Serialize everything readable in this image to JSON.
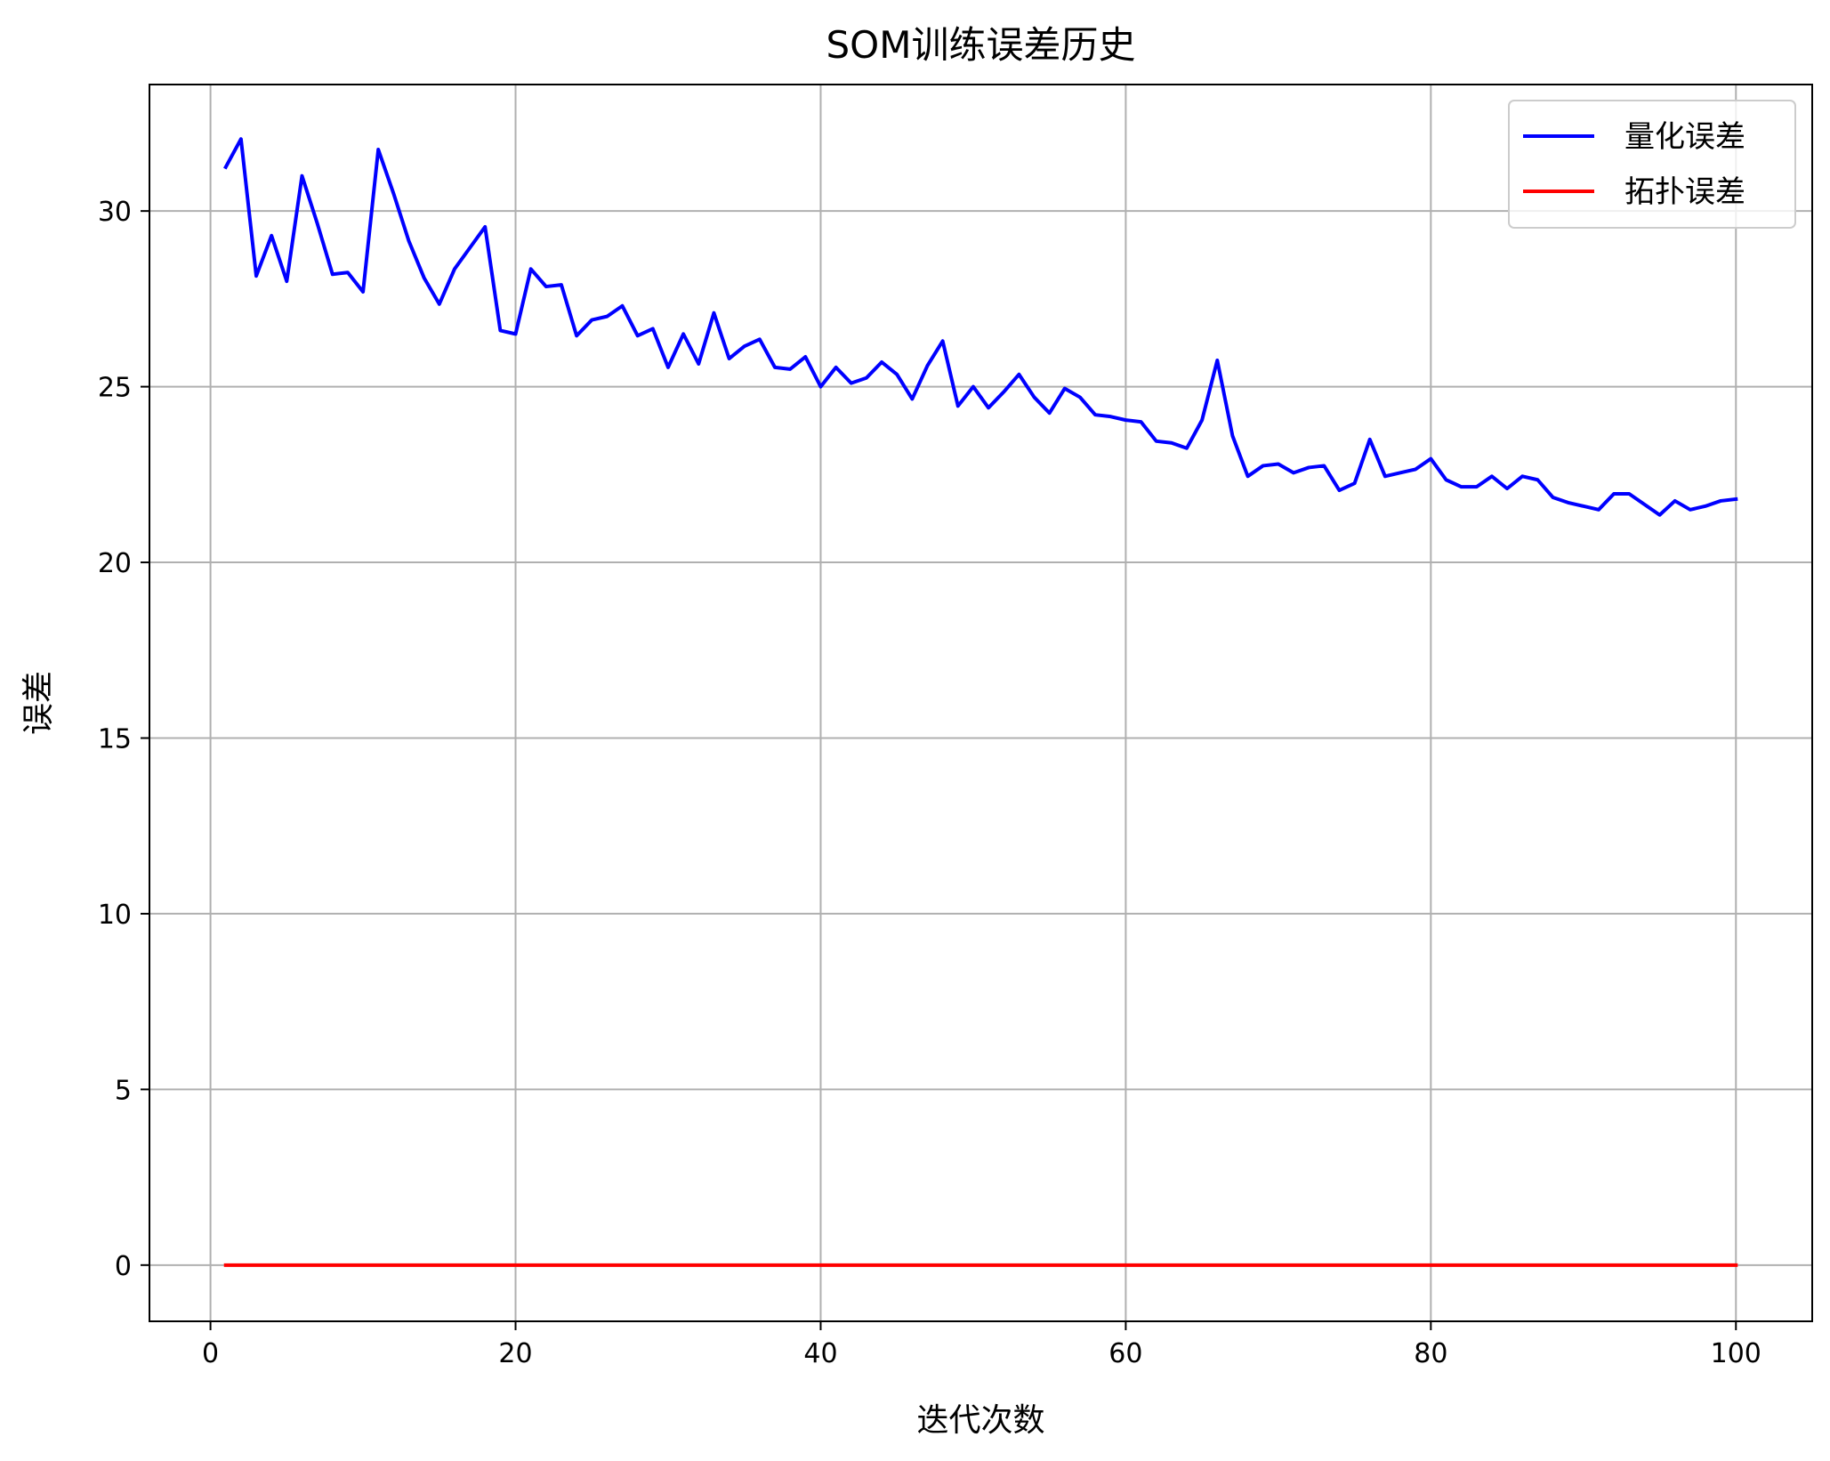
{
  "chart_data": {
    "type": "line",
    "title": "SOM训练误差历史",
    "xlabel": "迭代次数",
    "ylabel": "误差",
    "xlim": [
      -4,
      105
    ],
    "ylim": [
      -1.6,
      33.6
    ],
    "xticks": [
      0,
      20,
      40,
      60,
      80,
      100
    ],
    "yticks": [
      0,
      5,
      10,
      15,
      20,
      25,
      30
    ],
    "grid": true,
    "legend_position": "top-right",
    "x": [
      1,
      2,
      3,
      4,
      5,
      6,
      7,
      8,
      9,
      10,
      11,
      12,
      13,
      14,
      15,
      16,
      17,
      18,
      19,
      20,
      21,
      22,
      23,
      24,
      25,
      26,
      27,
      28,
      29,
      30,
      31,
      32,
      33,
      34,
      35,
      36,
      37,
      38,
      39,
      40,
      41,
      42,
      43,
      44,
      45,
      46,
      47,
      48,
      49,
      50,
      51,
      52,
      53,
      54,
      55,
      56,
      57,
      58,
      59,
      60,
      61,
      62,
      63,
      64,
      65,
      66,
      67,
      68,
      69,
      70,
      71,
      72,
      73,
      74,
      75,
      76,
      77,
      78,
      79,
      80,
      81,
      82,
      83,
      84,
      85,
      86,
      87,
      88,
      89,
      90,
      91,
      92,
      93,
      94,
      95,
      96,
      97,
      98,
      99,
      100
    ],
    "series": [
      {
        "name": "量化误差",
        "color": "#0000ff",
        "values": [
          31.25,
          32.05,
          28.15,
          29.3,
          28.0,
          31.0,
          29.65,
          28.2,
          28.25,
          27.7,
          31.75,
          30.5,
          29.15,
          28.1,
          27.35,
          28.35,
          28.95,
          29.55,
          26.6,
          26.5,
          28.35,
          27.85,
          27.9,
          26.45,
          26.9,
          27.0,
          27.3,
          26.45,
          26.65,
          25.55,
          26.5,
          25.65,
          27.1,
          25.8,
          26.15,
          26.35,
          25.55,
          25.5,
          25.85,
          25.0,
          25.55,
          25.1,
          25.25,
          25.7,
          25.35,
          24.65,
          25.6,
          26.3,
          24.45,
          25.0,
          24.4,
          24.85,
          25.35,
          24.7,
          24.25,
          24.95,
          24.7,
          24.2,
          24.15,
          24.05,
          24.0,
          23.45,
          23.4,
          23.25,
          24.05,
          25.75,
          23.6,
          22.45,
          22.75,
          22.8,
          22.55,
          22.7,
          22.75,
          22.05,
          22.25,
          23.5,
          22.45,
          22.55,
          22.65,
          22.95,
          22.35,
          22.15,
          22.15,
          22.45,
          22.1,
          22.45,
          22.35,
          21.85,
          21.7,
          21.6,
          21.5,
          21.95,
          21.95,
          21.65,
          21.35,
          21.75,
          21.5,
          21.6,
          21.75,
          21.8
        ]
      },
      {
        "name": "拓扑误差",
        "color": "#ff0000",
        "values": [
          0,
          0,
          0,
          0,
          0,
          0,
          0,
          0,
          0,
          0,
          0,
          0,
          0,
          0,
          0,
          0,
          0,
          0,
          0,
          0,
          0,
          0,
          0,
          0,
          0,
          0,
          0,
          0,
          0,
          0,
          0,
          0,
          0,
          0,
          0,
          0,
          0,
          0,
          0,
          0,
          0,
          0,
          0,
          0,
          0,
          0,
          0,
          0,
          0,
          0,
          0,
          0,
          0,
          0,
          0,
          0,
          0,
          0,
          0,
          0,
          0,
          0,
          0,
          0,
          0,
          0,
          0,
          0,
          0,
          0,
          0,
          0,
          0,
          0,
          0,
          0,
          0,
          0,
          0,
          0,
          0,
          0,
          0,
          0,
          0,
          0,
          0,
          0,
          0,
          0,
          0,
          0,
          0,
          0,
          0,
          0,
          0,
          0,
          0,
          0
        ]
      }
    ]
  }
}
